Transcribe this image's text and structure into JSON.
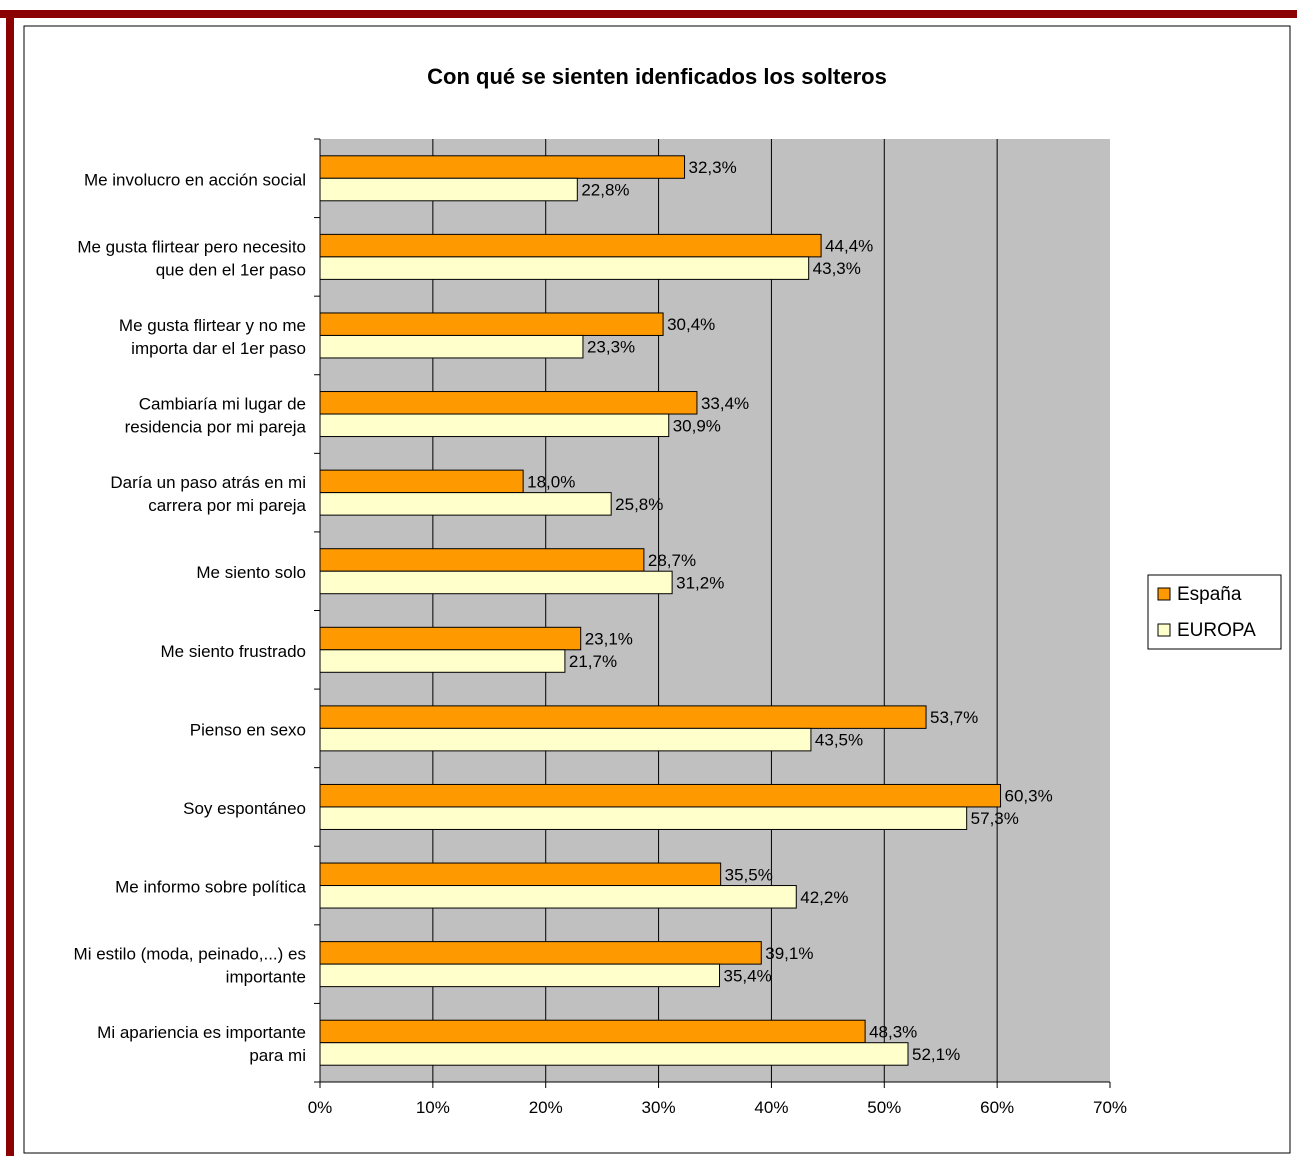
{
  "chart_data": {
    "type": "bar",
    "orientation": "horizontal",
    "title": "Con qué se sienten idenficados los solteros",
    "xlabel": "",
    "ylabel": "",
    "xlim": [
      0,
      70
    ],
    "x_ticks": [
      "0%",
      "10%",
      "20%",
      "30%",
      "40%",
      "50%",
      "60%",
      "70%"
    ],
    "grid": true,
    "legend_position": "right",
    "categories": [
      [
        "Me involucro en acción social"
      ],
      [
        "Me gusta flirtear pero necesito",
        "que den el 1er paso"
      ],
      [
        "Me gusta flirtear y no me",
        "importa dar el 1er paso"
      ],
      [
        "Cambiaría mi lugar de",
        "residencia por mi pareja"
      ],
      [
        "Daría un paso atrás en mi",
        "carrera por mi pareja"
      ],
      [
        "Me siento solo"
      ],
      [
        "Me siento frustrado"
      ],
      [
        "Pienso en sexo"
      ],
      [
        "Soy espontáneo"
      ],
      [
        "Me informo sobre política"
      ],
      [
        "Mi estilo (moda, peinado,...) es",
        "importante"
      ],
      [
        "Mi apariencia es importante",
        "para mi"
      ]
    ],
    "series": [
      {
        "name": "España",
        "color": "#FF9900",
        "values": [
          32.3,
          44.4,
          30.4,
          33.4,
          18.0,
          28.7,
          23.1,
          53.7,
          60.3,
          35.5,
          39.1,
          48.3
        ],
        "labels": [
          "32,3%",
          "44,4%",
          "30,4%",
          "33,4%",
          "18,0%",
          "28,7%",
          "23,1%",
          "53,7%",
          "60,3%",
          "35,5%",
          "39,1%",
          "48,3%"
        ]
      },
      {
        "name": "EUROPA",
        "color": "#FFFFCC",
        "values": [
          22.8,
          43.3,
          23.3,
          30.9,
          25.8,
          31.2,
          21.7,
          43.5,
          57.3,
          42.2,
          35.4,
          52.1
        ],
        "labels": [
          "22,8%",
          "43,3%",
          "23,3%",
          "30,9%",
          "25,8%",
          "31,2%",
          "21,7%",
          "43,5%",
          "57,3%",
          "42,2%",
          "35,4%",
          "52,1%"
        ]
      }
    ],
    "colors": {
      "plot_background": "#C0C0C0",
      "frame": "#8B0000"
    }
  }
}
